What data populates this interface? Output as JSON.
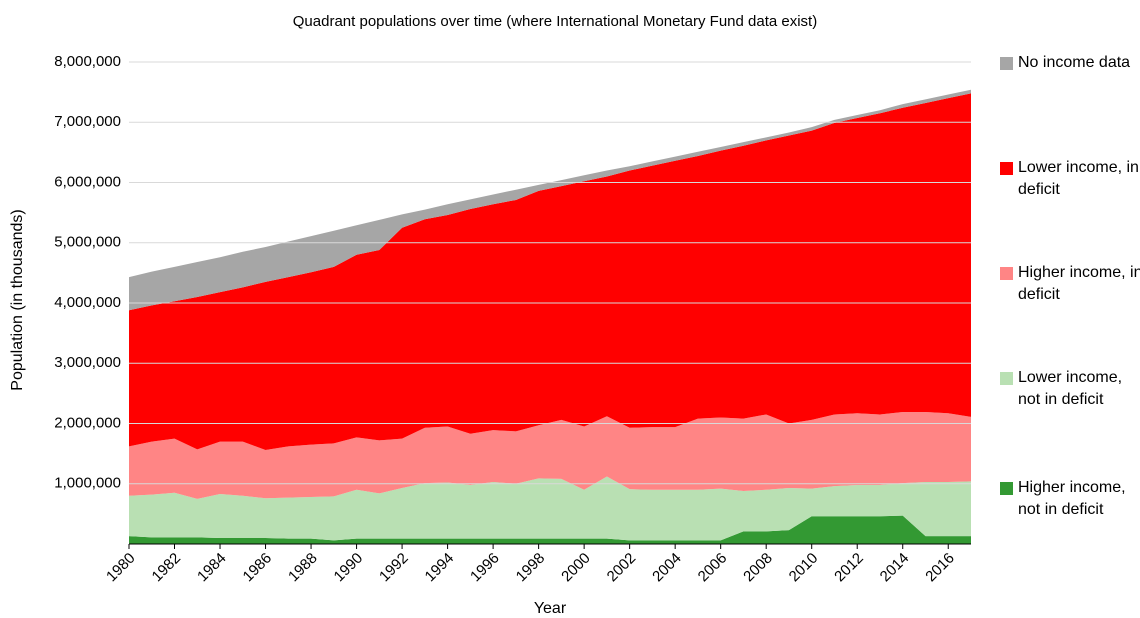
{
  "chart_data": {
    "type": "stacked_area",
    "title": "Quadrant populations over time (where International Monetary Fund data exist)",
    "xlabel": "Year",
    "ylabel": "Population (in thousands)",
    "x": [
      1980,
      1981,
      1982,
      1983,
      1984,
      1985,
      1986,
      1987,
      1988,
      1989,
      1990,
      1991,
      1992,
      1993,
      1994,
      1995,
      1996,
      1997,
      1998,
      1999,
      2000,
      2001,
      2002,
      2003,
      2004,
      2005,
      2006,
      2007,
      2008,
      2009,
      2010,
      2011,
      2012,
      2013,
      2014,
      2015,
      2016,
      2017
    ],
    "xlim": [
      1980,
      2017
    ],
    "xticks": [
      1980,
      1982,
      1984,
      1986,
      1988,
      1990,
      1992,
      1994,
      1996,
      1998,
      2000,
      2002,
      2004,
      2006,
      2008,
      2010,
      2012,
      2014,
      2016
    ],
    "ylim": [
      0,
      8000000
    ],
    "yticks": [
      {
        "value": 1000000,
        "label": "1,000,000"
      },
      {
        "value": 2000000,
        "label": "2,000,000"
      },
      {
        "value": 3000000,
        "label": "3,000,000"
      },
      {
        "value": 4000000,
        "label": "4,000,000"
      },
      {
        "value": 5000000,
        "label": "5,000,000"
      },
      {
        "value": 6000000,
        "label": "6,000,000"
      },
      {
        "value": 7000000,
        "label": "7,000,000"
      },
      {
        "value": 8000000,
        "label": "8,000,000"
      }
    ],
    "grid": true,
    "legend": "right",
    "series": [
      {
        "name": "Higher income, not in deficit",
        "color": "#339933",
        "values": [
          130000,
          110000,
          110000,
          110000,
          100000,
          100000,
          100000,
          90000,
          90000,
          60000,
          90000,
          90000,
          90000,
          90000,
          90000,
          90000,
          90000,
          90000,
          90000,
          90000,
          90000,
          90000,
          60000,
          60000,
          60000,
          60000,
          60000,
          210000,
          210000,
          230000,
          460000,
          460000,
          460000,
          460000,
          470000,
          130000,
          130000,
          130000
        ]
      },
      {
        "name": "Lower income, not in deficit",
        "color": "#b9e0b3",
        "values": [
          670000,
          710000,
          740000,
          640000,
          730000,
          700000,
          660000,
          680000,
          690000,
          730000,
          810000,
          750000,
          840000,
          920000,
          930000,
          890000,
          940000,
          910000,
          1000000,
          990000,
          810000,
          1030000,
          850000,
          840000,
          840000,
          840000,
          860000,
          670000,
          690000,
          700000,
          460000,
          500000,
          520000,
          520000,
          540000,
          900000,
          900000,
          910000
        ]
      },
      {
        "name": "Higher income, in deficit",
        "color": "#ff8585",
        "values": [
          820000,
          880000,
          900000,
          820000,
          870000,
          900000,
          800000,
          850000,
          870000,
          880000,
          870000,
          880000,
          820000,
          920000,
          930000,
          850000,
          860000,
          870000,
          880000,
          980000,
          1050000,
          1000000,
          1020000,
          1040000,
          1040000,
          1180000,
          1180000,
          1200000,
          1250000,
          1070000,
          1140000,
          1190000,
          1190000,
          1170000,
          1180000,
          1160000,
          1140000,
          1070000
        ]
      },
      {
        "name": "Lower income, in deficit",
        "color": "#ff0000",
        "values": [
          2260000,
          2260000,
          2280000,
          2530000,
          2480000,
          2560000,
          2790000,
          2810000,
          2860000,
          2930000,
          3030000,
          3160000,
          3500000,
          3460000,
          3510000,
          3730000,
          3750000,
          3840000,
          3890000,
          3880000,
          4070000,
          3980000,
          4270000,
          4340000,
          4420000,
          4360000,
          4430000,
          4530000,
          4550000,
          4780000,
          4800000,
          4840000,
          4900000,
          5000000,
          5050000,
          5130000,
          5230000,
          5370000
        ]
      },
      {
        "name": "No income data",
        "color": "#a6a6a6",
        "values": [
          550000,
          560000,
          570000,
          580000,
          580000,
          590000,
          580000,
          590000,
          600000,
          600000,
          490000,
          500000,
          220000,
          160000,
          180000,
          160000,
          160000,
          170000,
          100000,
          100000,
          100000,
          100000,
          70000,
          70000,
          70000,
          70000,
          60000,
          60000,
          50000,
          50000,
          60000,
          50000,
          50000,
          50000,
          60000,
          60000,
          60000,
          60000
        ]
      }
    ]
  }
}
